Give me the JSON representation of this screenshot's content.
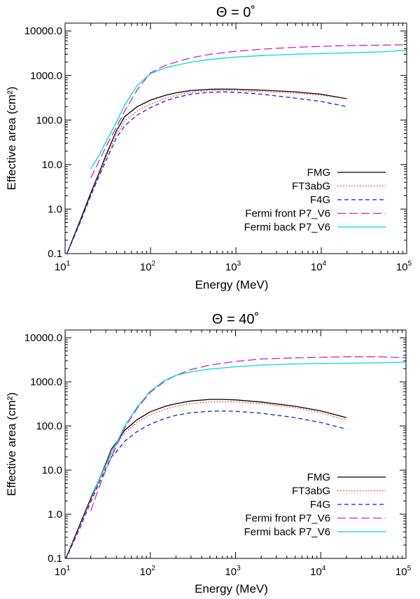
{
  "chart_data": [
    {
      "type": "line",
      "title": "Θ = 0˚",
      "xlabel": "Energy (MeV)",
      "ylabel": "Effective area (cm²)",
      "xscale": "log",
      "yscale": "log",
      "xlim": [
        10,
        100000
      ],
      "ylim": [
        0.1,
        15000
      ],
      "x_ticks": [
        {
          "value": 10,
          "base": "10",
          "exp": "1"
        },
        {
          "value": 100,
          "base": "10",
          "exp": "2"
        },
        {
          "value": 1000,
          "base": "10",
          "exp": "3"
        },
        {
          "value": 10000,
          "base": "10",
          "exp": "4"
        },
        {
          "value": 100000,
          "base": "10",
          "exp": "5"
        }
      ],
      "y_ticks": [
        {
          "value": 0.1,
          "label": "0.1"
        },
        {
          "value": 1,
          "label": "1.0"
        },
        {
          "value": 10,
          "label": "10.0"
        },
        {
          "value": 100,
          "label": "100.0"
        },
        {
          "value": 1000,
          "label": "1000.0"
        },
        {
          "value": 10000,
          "label": "10000.0"
        }
      ],
      "legend_position": "bottom-right",
      "grid": false,
      "series": [
        {
          "name": "FMG",
          "color": "#000000",
          "dash": "solid",
          "x": [
            10,
            15,
            20,
            25,
            30,
            40,
            50,
            70,
            100,
            150,
            200,
            300,
            500,
            700,
            1000,
            2000,
            5000,
            10000,
            20000
          ],
          "y": [
            0.08,
            0.55,
            2.3,
            6.5,
            16,
            58,
            120,
            200,
            280,
            360,
            410,
            460,
            490,
            495,
            490,
            470,
            430,
            380,
            300
          ]
        },
        {
          "name": "FT3abG",
          "color": "#e0301e",
          "dash": "dotted",
          "x": [
            10,
            15,
            20,
            25,
            30,
            40,
            50,
            70,
            100,
            150,
            200,
            300,
            500,
            700,
            1000,
            2000,
            5000,
            10000,
            20000
          ],
          "y": [
            0.08,
            0.5,
            2.1,
            6,
            14,
            48,
            95,
            160,
            230,
            310,
            360,
            420,
            460,
            465,
            460,
            440,
            400,
            360,
            300
          ]
        },
        {
          "name": "F4G",
          "color": "#1a22c8",
          "dash": "dashed",
          "x": [
            10,
            15,
            20,
            25,
            30,
            40,
            50,
            70,
            100,
            150,
            200,
            300,
            500,
            700,
            1000,
            2000,
            5000,
            10000,
            20000
          ],
          "y": [
            0.08,
            0.5,
            2,
            5.5,
            12,
            40,
            75,
            130,
            190,
            270,
            320,
            380,
            420,
            430,
            420,
            380,
            310,
            260,
            200
          ]
        },
        {
          "name": "Fermi front P7_V6",
          "color": "#d020c8",
          "dash": "longdash",
          "x": [
            20,
            25,
            30,
            40,
            50,
            70,
            100,
            150,
            200,
            300,
            500,
            1000,
            2000,
            5000,
            10000,
            20000,
            50000,
            100000
          ],
          "y": [
            5,
            12,
            25,
            70,
            160,
            480,
            1150,
            1700,
            2000,
            2500,
            3000,
            3500,
            3900,
            4300,
            4500,
            4700,
            4800,
            4900
          ]
        },
        {
          "name": "Fermi back P7_V6",
          "color": "#00d8e8",
          "dash": "solid",
          "x": [
            20,
            25,
            30,
            40,
            50,
            70,
            100,
            150,
            200,
            300,
            500,
            1000,
            2000,
            5000,
            10000,
            20000,
            50000,
            100000
          ],
          "y": [
            8,
            16,
            32,
            90,
            220,
            600,
            1100,
            1500,
            1700,
            2000,
            2300,
            2600,
            2800,
            3000,
            3100,
            3200,
            3400,
            3700
          ]
        }
      ]
    },
    {
      "type": "line",
      "title": "Θ = 40˚",
      "xlabel": "Energy (MeV)",
      "ylabel": "Effective area (cm²)",
      "xscale": "log",
      "yscale": "log",
      "xlim": [
        10,
        100000
      ],
      "ylim": [
        0.1,
        15000
      ],
      "x_ticks": [
        {
          "value": 10,
          "base": "10",
          "exp": "1"
        },
        {
          "value": 100,
          "base": "10",
          "exp": "2"
        },
        {
          "value": 1000,
          "base": "10",
          "exp": "3"
        },
        {
          "value": 10000,
          "base": "10",
          "exp": "4"
        },
        {
          "value": 100000,
          "base": "10",
          "exp": "5"
        }
      ],
      "y_ticks": [
        {
          "value": 0.1,
          "label": "0.1"
        },
        {
          "value": 1,
          "label": "1.0"
        },
        {
          "value": 10,
          "label": "10.0"
        },
        {
          "value": 100,
          "label": "100.0"
        },
        {
          "value": 1000,
          "label": "1000.0"
        },
        {
          "value": 10000,
          "label": "10000.0"
        }
      ],
      "legend_position": "bottom-right",
      "grid": false,
      "series": [
        {
          "name": "FMG",
          "color": "#000000",
          "dash": "solid",
          "x": [
            10,
            15,
            20,
            25,
            30,
            35,
            40,
            50,
            70,
            100,
            150,
            200,
            300,
            500,
            700,
            1000,
            2000,
            5000,
            10000,
            20000
          ],
          "y": [
            0.09,
            0.6,
            2.3,
            6,
            14,
            30,
            42,
            80,
            140,
            210,
            280,
            320,
            370,
            400,
            400,
            390,
            350,
            280,
            220,
            155
          ]
        },
        {
          "name": "FT3abG",
          "color": "#e0301e",
          "dash": "dotted",
          "x": [
            10,
            15,
            20,
            25,
            30,
            35,
            40,
            50,
            70,
            100,
            150,
            200,
            300,
            500,
            700,
            1000,
            2000,
            5000,
            10000,
            20000
          ],
          "y": [
            0.09,
            0.55,
            2.1,
            5.5,
            13,
            28,
            38,
            70,
            120,
            180,
            240,
            280,
            320,
            350,
            355,
            350,
            320,
            260,
            200,
            135
          ]
        },
        {
          "name": "F4G",
          "color": "#1a22c8",
          "dash": "dashed",
          "x": [
            10,
            15,
            20,
            25,
            30,
            35,
            40,
            50,
            70,
            100,
            150,
            200,
            300,
            500,
            700,
            1000,
            2000,
            5000,
            10000,
            20000
          ],
          "y": [
            0.09,
            0.5,
            1.9,
            5,
            11,
            20,
            26,
            45,
            75,
            110,
            150,
            175,
            200,
            215,
            218,
            215,
            195,
            155,
            120,
            85
          ]
        },
        {
          "name": "Fermi front P7_V6",
          "color": "#d020c8",
          "dash": "longdash",
          "x": [
            20,
            25,
            30,
            40,
            50,
            70,
            100,
            150,
            200,
            300,
            500,
            1000,
            2000,
            5000,
            10000,
            20000,
            50000,
            100000
          ],
          "y": [
            1.2,
            4,
            10,
            35,
            90,
            250,
            580,
            1050,
            1400,
            1900,
            2400,
            2900,
            3300,
            3500,
            3600,
            3700,
            3700,
            3500
          ]
        },
        {
          "name": "Fermi back P7_V6",
          "color": "#00d8e8",
          "dash": "solid",
          "x": [
            20,
            25,
            30,
            40,
            50,
            70,
            100,
            150,
            200,
            300,
            500,
            1000,
            2000,
            5000,
            10000,
            20000,
            50000,
            100000
          ],
          "y": [
            2.5,
            6,
            13,
            40,
            100,
            270,
            620,
            1100,
            1400,
            1700,
            1950,
            2200,
            2400,
            2550,
            2600,
            2650,
            2700,
            2800
          ]
        }
      ]
    }
  ]
}
